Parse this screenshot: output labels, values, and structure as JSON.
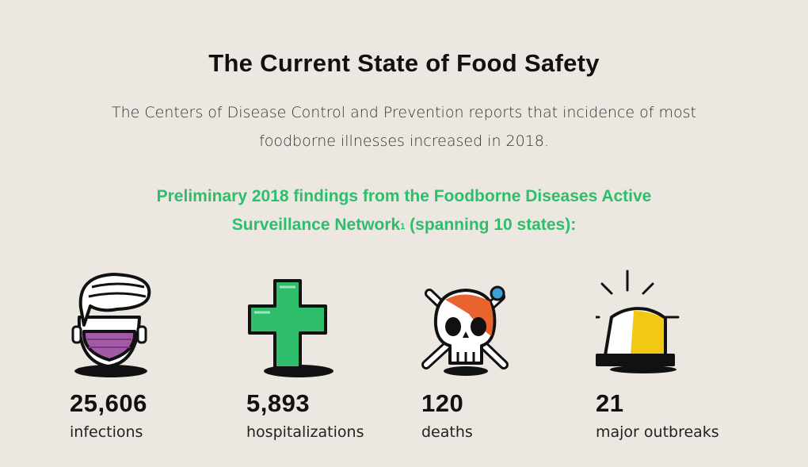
{
  "title": "The Current State of Food Safety",
  "subtitle": {
    "line1": "The Centers of Disease Control and Prevention reports that incidence of most",
    "line2": "foodborne illnesses increased in 2018."
  },
  "highlight": {
    "line1": "Preliminary 2018 findings from the Foodborne Diseases Active",
    "line2a": "Surveillance Network",
    "footnote": "1",
    "line2b": " (spanning 10 states):"
  },
  "colors": {
    "accent_green": "#2ebd6b",
    "mask_purple": "#a25aa6",
    "skull_orange": "#e8632e",
    "bone_blue": "#3ba0d8",
    "light_yellow": "#f3c814"
  },
  "stats": [
    {
      "icon": "masked-face-icon",
      "value": "25,606",
      "label": "infections"
    },
    {
      "icon": "green-cross-icon",
      "value": "5,893",
      "label": "hospitalizations"
    },
    {
      "icon": "skull-crossbones-icon",
      "value": "120",
      "label": "deaths"
    },
    {
      "icon": "alert-siren-icon",
      "value": "21",
      "label": "major outbreaks"
    }
  ]
}
